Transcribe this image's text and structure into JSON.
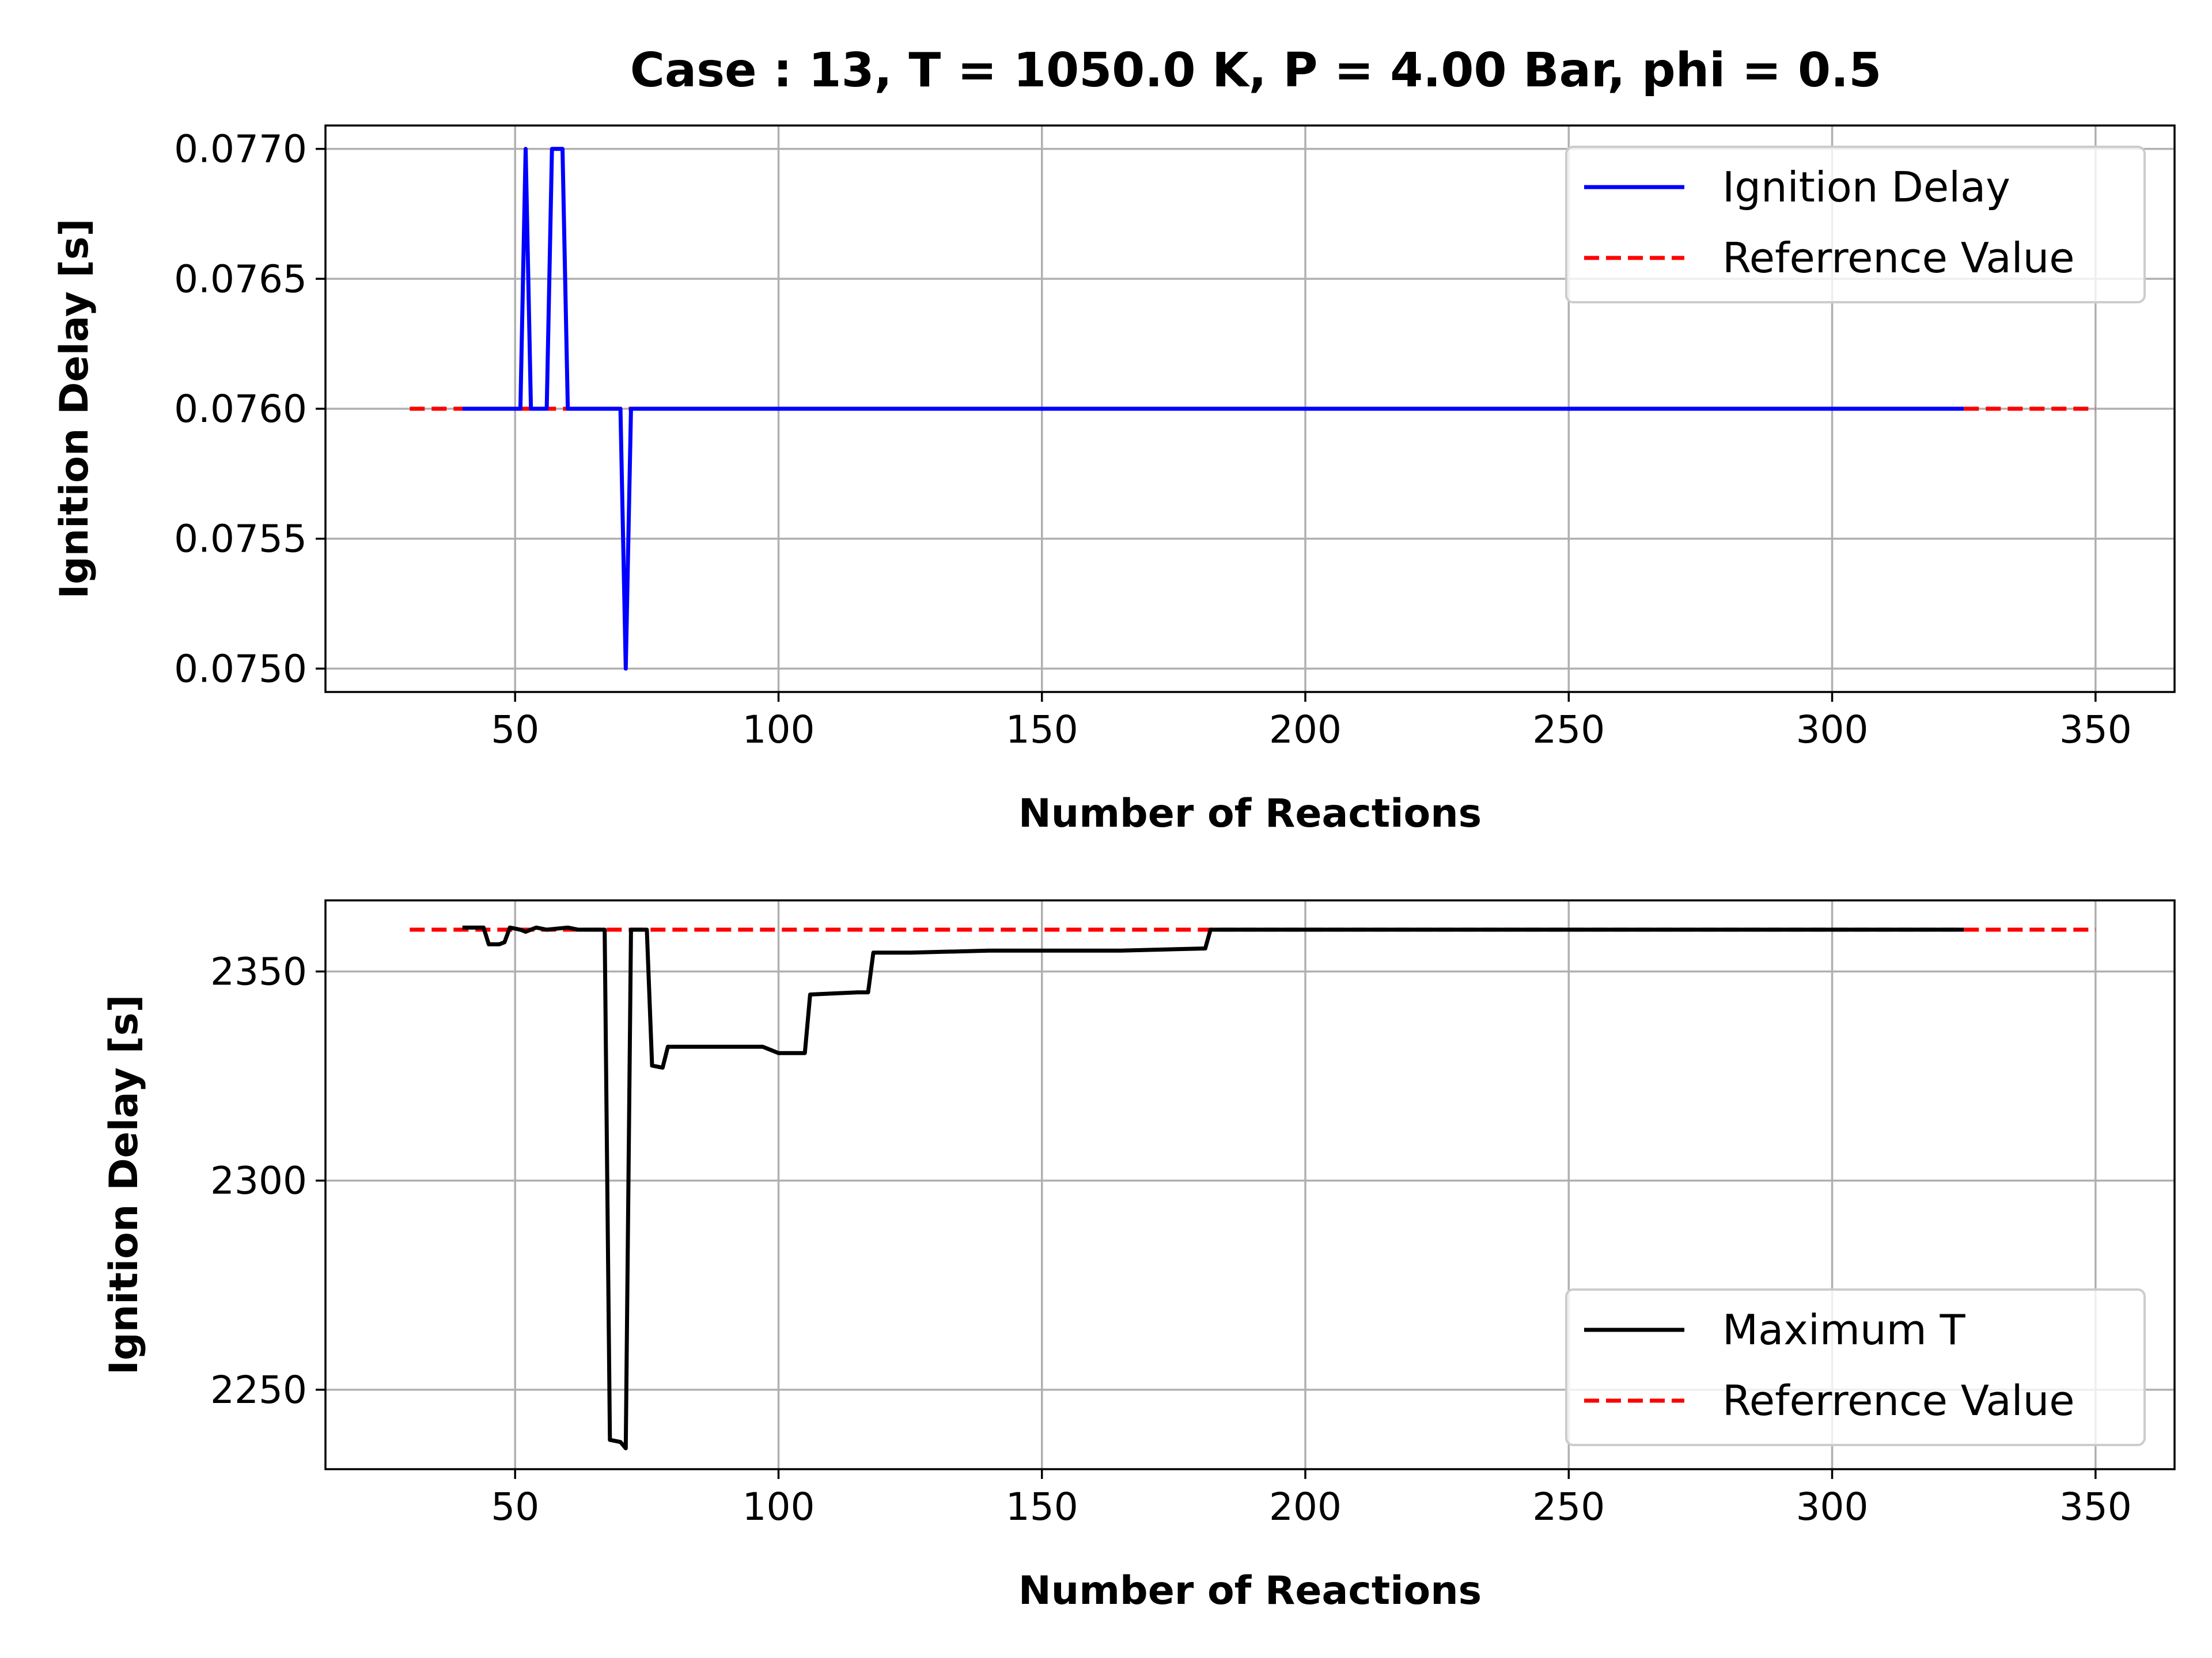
{
  "chart_data": [
    {
      "type": "line",
      "title": "Case : 13, T = 1050.0 K, P = 4.00 Bar, phi = 0.5",
      "xlabel": "Number of Reactions",
      "ylabel": "Ignition Delay [s]",
      "xlim": [
        14,
        365
      ],
      "ylim": [
        0.07491,
        0.07709
      ],
      "xticks": [
        50,
        100,
        150,
        200,
        250,
        300,
        350
      ],
      "yticks": [
        0.075,
        0.0755,
        0.076,
        0.0765,
        0.077
      ],
      "ytick_labels": [
        "0.0750",
        "0.0755",
        "0.0760",
        "0.0765",
        "0.0770"
      ],
      "grid": true,
      "legend": "top-right",
      "series": [
        {
          "name": "Ignition Delay",
          "color": "#0000ff",
          "style": "solid",
          "x": [
            40,
            50,
            51,
            52,
            53,
            55,
            56,
            57,
            59,
            60,
            70,
            71,
            72,
            325
          ],
          "y": [
            0.076,
            0.076,
            0.076,
            0.077,
            0.076,
            0.076,
            0.076,
            0.077,
            0.077,
            0.076,
            0.076,
            0.075,
            0.076,
            0.076
          ]
        },
        {
          "name": "Referrence Value",
          "color": "#ff0000",
          "style": "dashed",
          "x": [
            30,
            350
          ],
          "y": [
            0.076,
            0.076
          ]
        }
      ]
    },
    {
      "type": "line",
      "title": "",
      "xlabel": "Number of Reactions",
      "ylabel": "Ignition Delay [s]",
      "xlim": [
        14,
        365
      ],
      "ylim": [
        2231,
        2367
      ],
      "xticks": [
        50,
        100,
        150,
        200,
        250,
        300,
        350
      ],
      "yticks": [
        2250,
        2300,
        2350
      ],
      "ytick_labels": [
        "2250",
        "2300",
        "2350"
      ],
      "grid": true,
      "legend": "bottom-right",
      "series": [
        {
          "name": "Maximum T",
          "color": "#000000",
          "style": "solid",
          "x": [
            40,
            44,
            45,
            47,
            48,
            49,
            51,
            52,
            54,
            56,
            60,
            62,
            65,
            67,
            68,
            70,
            71,
            72,
            74,
            75,
            76,
            78,
            79,
            97,
            98,
            100,
            102,
            105,
            106,
            115,
            117,
            118,
            125,
            140,
            165,
            181,
            182,
            325
          ],
          "y": [
            2360.5,
            2360.5,
            2356.5,
            2356.5,
            2357,
            2360.5,
            2360,
            2359.5,
            2360.5,
            2360,
            2360.5,
            2360,
            2360,
            2360,
            2238,
            2237.5,
            2236,
            2360,
            2360,
            2360,
            2327.5,
            2327,
            2332,
            2332,
            2331.5,
            2330.5,
            2330.5,
            2330.5,
            2344.5,
            2345,
            2345,
            2354.5,
            2354.5,
            2355,
            2355,
            2355.5,
            2360,
            2360
          ]
        },
        {
          "name": "Referrence Value",
          "color": "#ff0000",
          "style": "dashed",
          "x": [
            30,
            350
          ],
          "y": [
            2360,
            2360
          ]
        }
      ]
    }
  ]
}
